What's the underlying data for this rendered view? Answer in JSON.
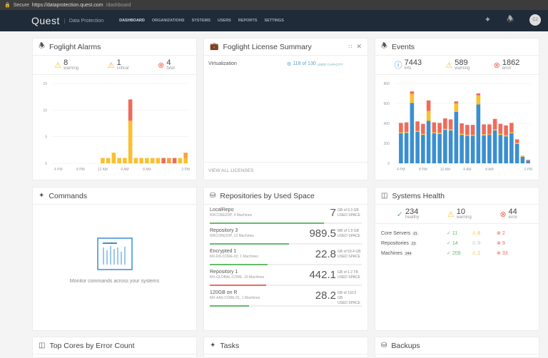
{
  "browser": {
    "secure": "Secure",
    "url_host": "https://dataprotection.quest.com",
    "url_path": "/dashboard"
  },
  "nav": {
    "logo": "Quest",
    "product": "Data Protection",
    "items": [
      "DASHBOARD",
      "ORGANIZATIONS",
      "SYSTEMS",
      "USERS",
      "REPORTS",
      "SETTINGS"
    ],
    "active": "DASHBOARD",
    "avatar": "CJ"
  },
  "colors": {
    "info": "#3a8fd0",
    "warning": "#fbc02d",
    "critical": "#f9a03f",
    "error": "#ef6b5a",
    "healthy": "#66bb6a",
    "nav": "#1f2b38"
  },
  "alarms": {
    "title": "Foglight Alarms",
    "stats": [
      {
        "value": "8",
        "label": "warning"
      },
      {
        "value": "1",
        "label": "critical"
      },
      {
        "value": "4",
        "label": "fatal"
      }
    ]
  },
  "license": {
    "title": "Foglight License Summary",
    "row_label": "Virtualization",
    "value": "118 of 130",
    "value_label": "USED CAPACITY",
    "link": "VIEW ALL LICENSES"
  },
  "events": {
    "title": "Events",
    "stats": [
      {
        "value": "7443",
        "label": "info"
      },
      {
        "value": "589",
        "label": "warning"
      },
      {
        "value": "1862",
        "label": "error"
      }
    ]
  },
  "commands": {
    "title": "Commands",
    "message": "Monitor commands across your systems"
  },
  "repositories": {
    "title": "Repositories by Used Space",
    "items": [
      {
        "name": "LocalRepo",
        "sub": "RRCORE2DP, 4 Machines",
        "value": "7",
        "unit": "GB of 9.3 GB",
        "label": "USED SPACE",
        "pct": 75,
        "color": "#66bb6a"
      },
      {
        "name": "Repository 3",
        "sub": "RRCORE2DP, 13 Machines",
        "value": "989.5",
        "unit": "MB of 1.9 GB",
        "label": "USED SPACE",
        "pct": 52,
        "color": "#66bb6a"
      },
      {
        "name": "Encrypted 1",
        "sub": "MX-RS-CORE-02, 1 Machines",
        "value": "22.8",
        "unit": "GB of 59.4 GB",
        "label": "USED SPACE",
        "pct": 38,
        "color": "#66bb6a"
      },
      {
        "name": "Repository 1",
        "sub": "MX-GLOBAL-CORE, 20 Machines",
        "value": "442.1",
        "unit": "GB of 1.2 TB",
        "label": "USED SPACE",
        "pct": 37,
        "color": "#ef6b5a"
      },
      {
        "name": "120GB on R",
        "sub": "MX-AA5-CORE-01, 1 Machines",
        "value": "28.2",
        "unit": "GB of 110.5 GB",
        "label": "USED SPACE",
        "pct": 26,
        "color": "#66bb6a"
      }
    ]
  },
  "health": {
    "title": "Systems Health",
    "stats": [
      {
        "value": "234",
        "label": "healthy"
      },
      {
        "value": "10",
        "label": "warning"
      },
      {
        "value": "44",
        "label": "error"
      }
    ],
    "rows": [
      {
        "name": "Core Servers",
        "count": "21",
        "ok": "11",
        "warn": "8",
        "err": "2"
      },
      {
        "name": "Repositories",
        "count": "23",
        "ok": "14",
        "warn": "0",
        "err": "9"
      },
      {
        "name": "Machines",
        "count": "244",
        "ok": "209",
        "warn": "2",
        "err": "33"
      }
    ]
  },
  "bottom": {
    "panels": [
      "Top Cores by Error Count",
      "Tasks",
      "Backups"
    ]
  },
  "chart_data": [
    {
      "type": "bar",
      "stacked": true,
      "ylim": [
        0,
        15
      ],
      "yticks": [
        0,
        5,
        10,
        15
      ],
      "xtick_labels": [
        "4 PM",
        "8 PM",
        "12 AM",
        "4 AM",
        "8 AM",
        "3 PM"
      ],
      "xtick_hours": [
        0,
        4,
        8,
        12,
        16,
        23
      ],
      "series": [
        {
          "key": "warning",
          "color": "#fbc02d",
          "values": [
            0,
            0,
            0,
            0,
            0,
            0,
            0,
            0,
            1,
            1,
            2,
            1,
            1,
            8,
            1,
            1,
            1,
            1,
            1,
            0,
            0,
            0,
            1,
            1
          ]
        },
        {
          "key": "critical",
          "color": "#f9a03f",
          "values": [
            0,
            0,
            0,
            0,
            0,
            0,
            0,
            0,
            0,
            0,
            0,
            0,
            0,
            0,
            0,
            0,
            0,
            0,
            0,
            0,
            1,
            0,
            0,
            1
          ]
        },
        {
          "key": "fatal",
          "color": "#ef6b5a",
          "values": [
            0,
            0,
            0,
            0,
            0,
            0,
            0,
            0,
            0,
            0,
            0,
            0,
            0,
            4,
            0,
            0,
            0,
            0,
            0,
            1,
            0,
            1,
            0,
            0
          ]
        }
      ]
    },
    {
      "type": "bar",
      "stacked": true,
      "ylim": [
        0,
        800
      ],
      "yticks": [
        0,
        200,
        400,
        600,
        800
      ],
      "xtick_labels": [
        "4 PM",
        "8 PM",
        "12 AM",
        "4 AM",
        "8 AM",
        "3 PM"
      ],
      "xtick_hours": [
        0,
        4,
        8,
        12,
        16,
        23
      ],
      "series": [
        {
          "key": "info",
          "color": "#3a8fd0",
          "values": [
            300,
            305,
            605,
            315,
            285,
            425,
            300,
            295,
            335,
            330,
            515,
            285,
            275,
            275,
            590,
            280,
            285,
            330,
            285,
            270,
            300,
            195,
            65,
            25
          ]
        },
        {
          "key": "warning",
          "color": "#fbc02d",
          "values": [
            10,
            10,
            90,
            10,
            10,
            100,
            10,
            10,
            10,
            10,
            85,
            10,
            10,
            10,
            90,
            10,
            5,
            10,
            10,
            10,
            10,
            10,
            5,
            3
          ]
        },
        {
          "key": "error",
          "color": "#ef6b5a",
          "values": [
            95,
            95,
            25,
            95,
            100,
            105,
            100,
            100,
            105,
            100,
            20,
            105,
            100,
            100,
            20,
            100,
            100,
            105,
            100,
            100,
            95,
            35,
            5,
            7
          ]
        }
      ]
    }
  ]
}
